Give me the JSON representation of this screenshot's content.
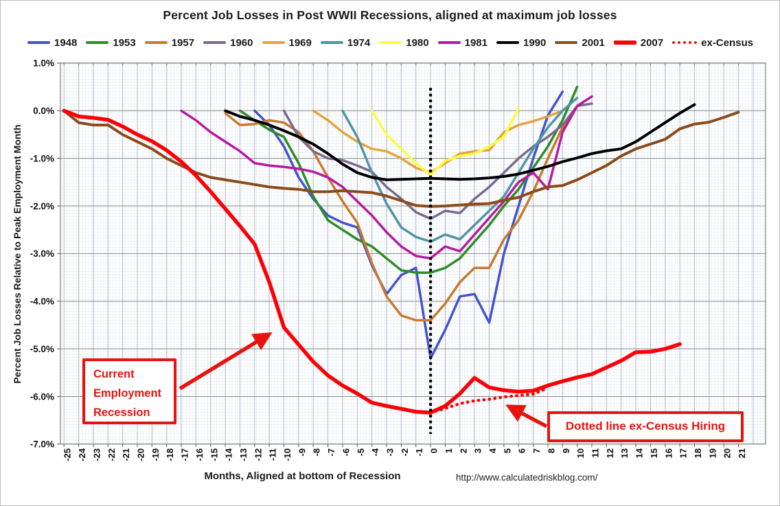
{
  "title": "Percent Job Losses in Post WWII Recessions, aligned at maximum job losses",
  "watermark": "http://www.calculatedriskblog.com/",
  "axes": {
    "y_title": "Percent Job Losses Relative to Peak Employment Month",
    "x_title": "Months, Aligned at bottom of Recession",
    "y_tick_labels": [
      "1.0%",
      "0.0%",
      "-1.0%",
      "-2.0%",
      "-3.0%",
      "-4.0%",
      "-5.0%",
      "-6.0%",
      "-7.0%"
    ],
    "y_tick_values": [
      1,
      0,
      -1,
      -2,
      -3,
      -4,
      -5,
      -6,
      -7
    ],
    "x_tick_values": [
      -25,
      -24,
      -23,
      -22,
      -21,
      -20,
      -19,
      -18,
      -17,
      -16,
      -15,
      -14,
      -13,
      -12,
      -11,
      -10,
      -9,
      -8,
      -7,
      -6,
      -5,
      -4,
      -3,
      -2,
      -1,
      0,
      1,
      2,
      3,
      4,
      5,
      6,
      7,
      8,
      9,
      10,
      11,
      12,
      13,
      14,
      15,
      16,
      17,
      18,
      19,
      20,
      21
    ]
  },
  "annotations": {
    "current_recession": {
      "line1": "Current",
      "line2": "Employment",
      "line3": "Recession"
    },
    "ex_census": {
      "text": "Dotted line ex-Census Hiring"
    },
    "trough_marker_month": 0
  },
  "colors": {
    "annotation_red": "#e8120e",
    "major_grid": "#8a8a8a",
    "month_grid": "#b3bac6",
    "fine_grid": "#dfe7f2",
    "trough_line": "#000000"
  },
  "chart_data": {
    "type": "line",
    "title": "Percent Job Losses in Post WWII Recessions, aligned at maximum job losses",
    "xlabel": "Months, Aligned at bottom of Recession",
    "ylabel": "Percent Job Losses Relative to Peak Employment Month",
    "xlim": [
      -25,
      21
    ],
    "ylim": [
      -7,
      1
    ],
    "grid": true,
    "legend_position": "top",
    "x_unit": "months relative to employment trough",
    "y_unit": "percent job losses relative to peak employment month",
    "series": [
      {
        "name": "1948",
        "color": "#4353d0",
        "stroke_width": 3.5,
        "start_month": -12,
        "values": [
          0,
          -0.3,
          -0.75,
          -1.4,
          -1.85,
          -2.2,
          -2.35,
          -2.45,
          -3.25,
          -3.85,
          -3.45,
          -3.3,
          -5.2,
          -4.6,
          -3.9,
          -3.85,
          -4.45,
          -3.0,
          -2.0,
          -1.0,
          -0.1,
          0.4
        ]
      },
      {
        "name": "1953",
        "color": "#2e8b25",
        "stroke_width": 3.5,
        "start_month": -13,
        "values": [
          0,
          -0.2,
          -0.4,
          -0.55,
          -1.1,
          -1.8,
          -2.3,
          -2.5,
          -2.7,
          -2.85,
          -3.1,
          -3.35,
          -3.4,
          -3.4,
          -3.3,
          -3.1,
          -2.75,
          -2.4,
          -2.0,
          -1.65,
          -1.2,
          -0.75,
          -0.2,
          0.5
        ]
      },
      {
        "name": "1957",
        "color": "#c87a2b",
        "stroke_width": 3.5,
        "start_month": -14,
        "values": [
          -0.05,
          -0.3,
          -0.28,
          -0.2,
          -0.25,
          -0.45,
          -0.85,
          -1.4,
          -1.9,
          -2.35,
          -3.2,
          -3.9,
          -4.3,
          -4.4,
          -4.4,
          -4.05,
          -3.6,
          -3.3,
          -3.3,
          -2.7,
          -2.3,
          -1.7,
          -1.0,
          -0.35,
          0.1
        ]
      },
      {
        "name": "1960",
        "color": "#786a8e",
        "stroke_width": 3.5,
        "start_month": -10,
        "values": [
          0,
          -0.55,
          -0.85,
          -1.0,
          -1.04,
          -1.15,
          -1.28,
          -1.6,
          -1.85,
          -2.13,
          -2.27,
          -2.1,
          -2.15,
          -1.85,
          -1.6,
          -1.3,
          -1.0,
          -0.75,
          -0.55,
          -0.3,
          0.1,
          0.15
        ]
      },
      {
        "name": "1969",
        "color": "#e5a33d",
        "stroke_width": 3.5,
        "start_month": -8,
        "values": [
          0,
          -0.2,
          -0.45,
          -0.65,
          -0.8,
          -0.85,
          -1.0,
          -1.2,
          -1.3,
          -1.1,
          -0.9,
          -0.85,
          -0.83,
          -0.45,
          -0.3,
          -0.22,
          -0.12,
          0.0
        ]
      },
      {
        "name": "1974",
        "color": "#4e95a5",
        "stroke_width": 3.5,
        "start_month": -6,
        "values": [
          0,
          -0.55,
          -1.3,
          -1.95,
          -2.45,
          -2.65,
          -2.75,
          -2.6,
          -2.7,
          -2.4,
          -2.1,
          -1.8,
          -1.3,
          -0.8,
          -0.35,
          0.0,
          0.27
        ]
      },
      {
        "name": "1980",
        "color": "#fcfc3f",
        "stroke_width": 3.5,
        "start_month": -4,
        "values": [
          0,
          -0.5,
          -0.8,
          -1.1,
          -1.35,
          -1.05,
          -0.95,
          -0.9,
          -0.75,
          -0.55,
          0.05
        ]
      },
      {
        "name": "1981",
        "color": "#b818a2",
        "stroke_width": 3.5,
        "start_month": -17,
        "values": [
          0,
          -0.2,
          -0.45,
          -0.65,
          -0.85,
          -1.1,
          -1.15,
          -1.18,
          -1.22,
          -1.28,
          -1.4,
          -1.6,
          -1.9,
          -2.2,
          -2.55,
          -2.85,
          -3.05,
          -3.1,
          -2.85,
          -2.95,
          -2.6,
          -2.25,
          -1.9,
          -1.5,
          -1.3,
          -1.65,
          -0.45,
          0.1,
          0.3
        ]
      },
      {
        "name": "1990",
        "color": "#000000",
        "stroke_width": 4,
        "start_month": -14,
        "values": [
          0,
          -0.12,
          -0.2,
          -0.3,
          -0.42,
          -0.55,
          -0.7,
          -0.9,
          -1.12,
          -1.3,
          -1.4,
          -1.45,
          -1.44,
          -1.43,
          -1.42,
          -1.43,
          -1.44,
          -1.43,
          -1.41,
          -1.38,
          -1.33,
          -1.25,
          -1.17,
          -1.07,
          -0.99,
          -0.9,
          -0.84,
          -0.8,
          -0.65,
          -0.45,
          -0.25,
          -0.05,
          0.13
        ]
      },
      {
        "name": "2001",
        "color": "#8b4a19",
        "stroke_width": 4,
        "start_month": -25,
        "values": [
          0,
          -0.25,
          -0.3,
          -0.3,
          -0.5,
          -0.65,
          -0.8,
          -1.0,
          -1.15,
          -1.3,
          -1.4,
          -1.45,
          -1.5,
          -1.55,
          -1.6,
          -1.63,
          -1.65,
          -1.7,
          -1.7,
          -1.68,
          -1.7,
          -1.72,
          -1.79,
          -1.89,
          -1.99,
          -2.01,
          -2.0,
          -1.98,
          -1.96,
          -1.95,
          -1.88,
          -1.82,
          -1.7,
          -1.6,
          -1.57,
          -1.45,
          -1.3,
          -1.15,
          -0.95,
          -0.8,
          -0.7,
          -0.6,
          -0.38,
          -0.28,
          -0.24,
          -0.14,
          -0.03
        ]
      },
      {
        "name": "2007",
        "color": "#fb0107",
        "stroke_width": 5.5,
        "start_month": -25,
        "values": [
          0,
          -0.12,
          -0.15,
          -0.19,
          -0.33,
          -0.5,
          -0.64,
          -0.83,
          -1.07,
          -1.36,
          -1.7,
          -2.06,
          -2.42,
          -2.8,
          -3.6,
          -4.55,
          -4.91,
          -5.27,
          -5.56,
          -5.77,
          -5.94,
          -6.13,
          -6.2,
          -6.26,
          -6.32,
          -6.34,
          -6.2,
          -5.94,
          -5.61,
          -5.81,
          -5.87,
          -5.9,
          -5.88,
          -5.77,
          -5.68,
          -5.6,
          -5.53,
          -5.39,
          -5.25,
          -5.07,
          -5.06,
          -5.0,
          -4.9
        ]
      },
      {
        "name": "ex-Census",
        "color": "#fb0107",
        "stroke_width": 4.5,
        "dotted": true,
        "start_month": 0,
        "values": [
          -6.34,
          -6.25,
          -6.15,
          -6.09,
          -6.06,
          -6.01,
          -5.98,
          -5.95,
          -5.82
        ]
      }
    ]
  }
}
